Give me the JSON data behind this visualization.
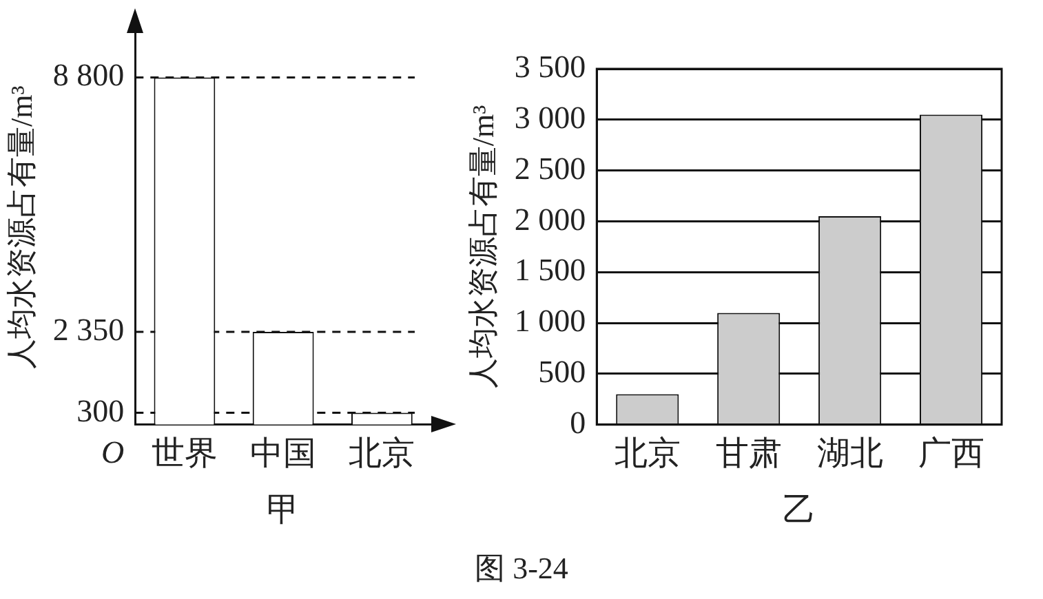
{
  "chart_data": [
    {
      "type": "bar",
      "xlabel": "甲",
      "ylabel": "人均水资源占有量/m³",
      "categories": [
        "世界",
        "中国",
        "北京"
      ],
      "values": [
        8800,
        2350,
        300
      ],
      "color": "#ffffff",
      "ylim": [
        0,
        10000
      ],
      "annotations": [
        "O"
      ],
      "yticks": [
        300,
        {
          "value": 2350,
          "label": "2 350"
        },
        {
          "value": 8800,
          "label": "8 800"
        }
      ],
      "grid": false,
      "ref_lines": [
        {
          "axis": "y",
          "value": 300,
          "line_style": "dashed"
        },
        {
          "axis": "y",
          "value": 2350,
          "line_style": "dashed"
        },
        {
          "axis": "y",
          "value": 8800,
          "line_style": "dashed"
        }
      ]
    },
    {
      "type": "bar",
      "xlabel": "乙",
      "ylabel": "人均水资源占有量/m³",
      "categories": [
        "北京",
        "甘肃",
        "湖北",
        "广西"
      ],
      "values": [
        300,
        1100,
        2050,
        3050
      ],
      "color": "#cccccc",
      "ylim": [
        0,
        3500
      ],
      "yticks": [
        {
          "value": 0,
          "label": "0"
        },
        {
          "value": 500,
          "label": "500"
        },
        {
          "value": 1000,
          "label": "1 000"
        },
        {
          "value": 1500,
          "label": "1 500"
        },
        {
          "value": 2000,
          "label": "2 000"
        },
        {
          "value": 2500,
          "label": "2 500"
        },
        {
          "value": 3000,
          "label": "3 000"
        },
        {
          "value": 3500,
          "label": "3 500"
        }
      ],
      "grid": "y",
      "annotations": [
        "图 3-24"
      ]
    }
  ]
}
